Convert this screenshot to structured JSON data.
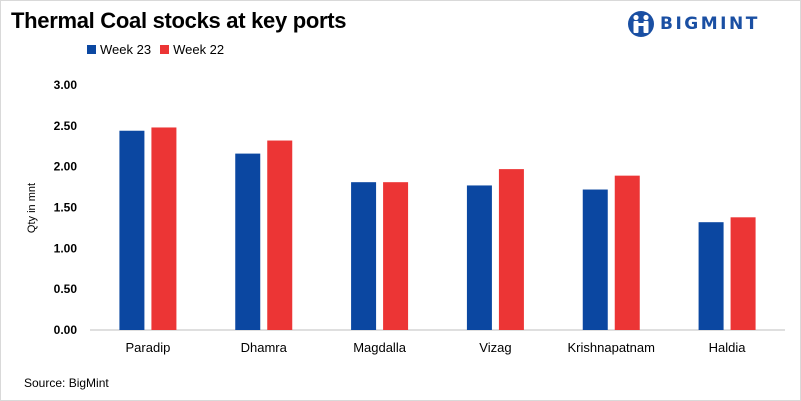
{
  "header": {
    "title": "Thermal Coal stocks at key ports",
    "brand": "BIGMINT",
    "brand_color": "#1a4fa3"
  },
  "footer": {
    "source": "Source: BigMint"
  },
  "chart_data": {
    "type": "bar",
    "title": "Thermal Coal stocks at key ports",
    "xlabel": "",
    "ylabel": "Qty in mnt",
    "ylim": [
      0,
      3
    ],
    "yticks": [
      "0.00",
      "0.50",
      "1.00",
      "1.50",
      "2.00",
      "2.50",
      "3.00"
    ],
    "grid": false,
    "legend_position": "top-left",
    "categories": [
      "Paradip",
      "Dhamra",
      "Magdalla",
      "Vizag",
      "Krishnapatnam",
      "Haldia"
    ],
    "series": [
      {
        "name": "Week 23",
        "color": "#0b47a1",
        "values": [
          2.44,
          2.16,
          1.81,
          1.77,
          1.72,
          1.32
        ]
      },
      {
        "name": "Week 22",
        "color": "#ec3535",
        "values": [
          2.48,
          2.32,
          1.81,
          1.97,
          1.89,
          1.38
        ]
      }
    ]
  }
}
